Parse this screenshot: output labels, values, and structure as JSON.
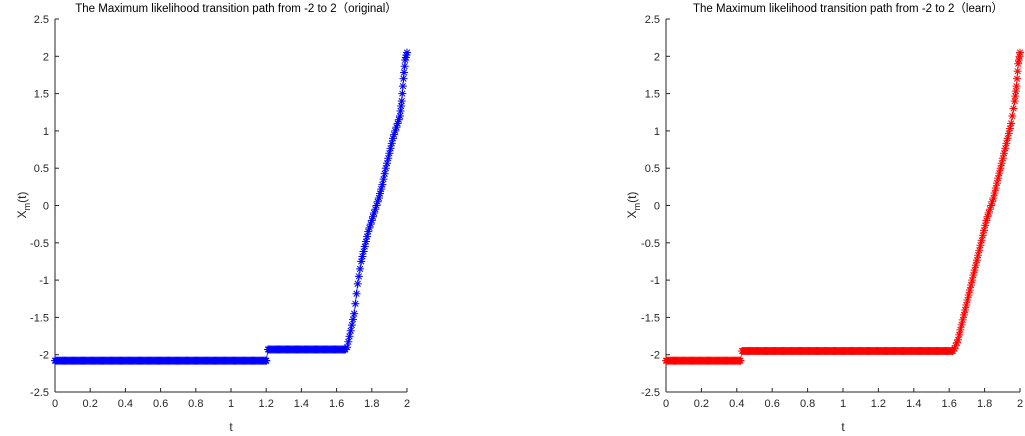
{
  "chart_data": [
    {
      "type": "scatter",
      "title": "The Maximum likelihood transition path from -2 to 2（original）",
      "xlabel": "t",
      "ylabel_main": "X",
      "ylabel_sub": "m",
      "ylabel_tail": "(t)",
      "xlim": [
        0,
        2
      ],
      "ylim": [
        -2.5,
        2.5
      ],
      "xticks": [
        "0",
        "0.2",
        "0.4",
        "0.6",
        "0.8",
        "1",
        "1.2",
        "1.4",
        "1.6",
        "1.8",
        "2"
      ],
      "yticks": [
        "2.5",
        "2",
        "1.5",
        "1",
        "0.5",
        "0",
        "-0.5",
        "-1",
        "-1.5",
        "-2",
        "-2.5"
      ],
      "marker": "*",
      "color": "#0000ff",
      "grid": false,
      "series": [
        {
          "segments": [
            {
              "t_start": 0.0,
              "t_end": 1.2,
              "x": -2.08
            },
            {
              "t_start": 1.21,
              "t_end": 1.65,
              "x": -1.93
            }
          ],
          "rise": [
            [
              1.66,
              -1.9
            ],
            [
              1.68,
              -1.68
            ],
            [
              1.7,
              -1.45
            ],
            [
              1.72,
              -1.05
            ],
            [
              1.74,
              -0.75
            ],
            [
              1.76,
              -0.55
            ],
            [
              1.78,
              -0.35
            ],
            [
              1.8,
              -0.2
            ],
            [
              1.82,
              -0.05
            ],
            [
              1.84,
              0.1
            ],
            [
              1.86,
              0.28
            ],
            [
              1.88,
              0.5
            ],
            [
              1.9,
              0.7
            ],
            [
              1.92,
              0.9
            ],
            [
              1.94,
              1.05
            ],
            [
              1.96,
              1.2
            ],
            [
              1.97,
              1.4
            ],
            [
              1.98,
              1.7
            ],
            [
              1.99,
              1.95
            ],
            [
              2.0,
              2.05
            ]
          ]
        }
      ]
    },
    {
      "type": "scatter",
      "title": "The Maximum likelihood transition path from -2 to 2（learn）",
      "xlabel": "t",
      "ylabel_main": "X",
      "ylabel_sub": "m",
      "ylabel_tail": "(t)",
      "xlim": [
        0,
        2
      ],
      "ylim": [
        -2.5,
        2.5
      ],
      "xticks": [
        "0",
        "0.2",
        "0.4",
        "0.6",
        "0.8",
        "1",
        "1.2",
        "1.4",
        "1.6",
        "1.8",
        "2"
      ],
      "yticks": [
        "2.5",
        "2",
        "1.5",
        "1",
        "0.5",
        "0",
        "-0.5",
        "-1",
        "-1.5",
        "-2",
        "-2.5"
      ],
      "marker": "*",
      "color": "#ff0000",
      "grid": false,
      "series": [
        {
          "segments": [
            {
              "t_start": 0.0,
              "t_end": 0.42,
              "x": -2.08
            },
            {
              "t_start": 0.43,
              "t_end": 1.62,
              "x": -1.95
            }
          ],
          "rise": [
            [
              1.63,
              -1.92
            ],
            [
              1.65,
              -1.8
            ],
            [
              1.67,
              -1.6
            ],
            [
              1.69,
              -1.4
            ],
            [
              1.71,
              -1.2
            ],
            [
              1.73,
              -1.0
            ],
            [
              1.75,
              -0.8
            ],
            [
              1.77,
              -0.6
            ],
            [
              1.79,
              -0.4
            ],
            [
              1.81,
              -0.2
            ],
            [
              1.83,
              -0.05
            ],
            [
              1.85,
              0.1
            ],
            [
              1.87,
              0.3
            ],
            [
              1.89,
              0.5
            ],
            [
              1.91,
              0.7
            ],
            [
              1.93,
              0.9
            ],
            [
              1.95,
              1.1
            ],
            [
              1.97,
              1.4
            ],
            [
              1.98,
              1.6
            ],
            [
              1.99,
              1.9
            ],
            [
              2.0,
              2.05
            ]
          ]
        }
      ]
    }
  ]
}
